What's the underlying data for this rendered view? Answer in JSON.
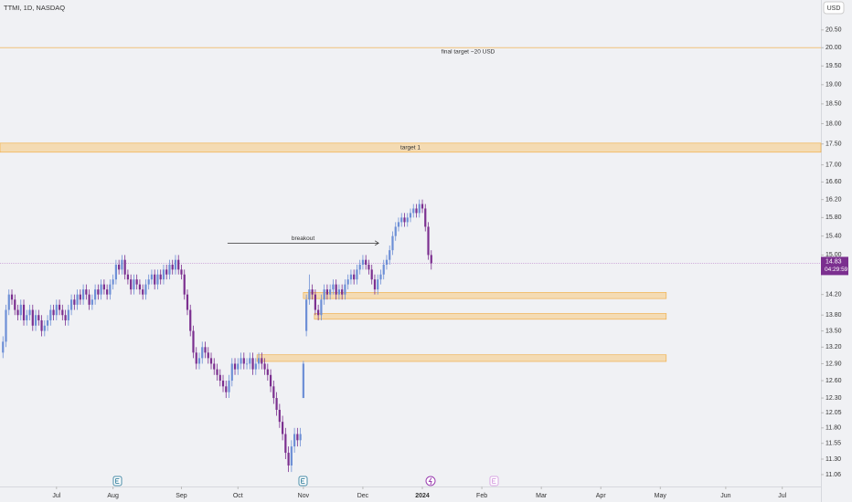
{
  "chart_data": {
    "type": "candlestick",
    "title": "TTMI, 1D, NASDAQ",
    "currency": "USD",
    "countdown": "04:29:59",
    "up_color": "#6d8fd6",
    "down_color": "#7b2f8f",
    "zone_color": "#f7c97e",
    "log_scale": true,
    "ylim": [
      10.92,
      21.37
    ],
    "yticks": [
      {
        "value": 20.5,
        "label": "20.50"
      },
      {
        "value": 20,
        "label": "20.00"
      },
      {
        "value": 19.5,
        "label": "19.50"
      },
      {
        "value": 19,
        "label": "19.00"
      },
      {
        "value": 18.5,
        "label": "18.50"
      },
      {
        "value": 18,
        "label": "18.00"
      },
      {
        "value": 17.5,
        "label": "17.50"
      },
      {
        "value": 17,
        "label": "17.00"
      },
      {
        "value": 16.6,
        "label": "16.60"
      },
      {
        "value": 16.2,
        "label": "16.20"
      },
      {
        "value": 15.8,
        "label": "15.80"
      },
      {
        "value": 15.4,
        "label": "15.40"
      },
      {
        "value": 15,
        "label": "15.00"
      },
      {
        "value": 14.2,
        "label": "14.20"
      },
      {
        "value": 13.8,
        "label": "13.80"
      },
      {
        "value": 13.5,
        "label": "13.50"
      },
      {
        "value": 13.2,
        "label": "13.20"
      },
      {
        "value": 12.9,
        "label": "12.90"
      },
      {
        "value": 12.6,
        "label": "12.60"
      },
      {
        "value": 12.3,
        "label": "12.30"
      },
      12.05,
      {
        "value": 11.8,
        "label": "11.80"
      },
      11.55,
      {
        "value": 11.3,
        "label": "11.30"
      },
      11.06
    ],
    "xlim": [
      -1,
      275
    ],
    "xticks": [
      {
        "value": 18,
        "label": "Jul"
      },
      {
        "value": 37,
        "label": "Aug"
      },
      {
        "value": 60,
        "label": "Sep"
      },
      {
        "value": 79,
        "label": "Oct"
      },
      {
        "value": 101,
        "label": "Nov"
      },
      {
        "value": 121,
        "label": "Dec"
      },
      {
        "value": 141,
        "label": "2024"
      },
      {
        "value": 161,
        "label": "Feb"
      },
      {
        "value": 181,
        "label": "Mar"
      },
      {
        "value": 201,
        "label": "Apr"
      },
      {
        "value": 221,
        "label": "May"
      },
      {
        "value": 243,
        "label": "Jun"
      },
      {
        "value": 262,
        "label": "Jul"
      }
    ],
    "candles": [
      [
        13.1,
        13.4,
        13.0,
        13.3
      ],
      [
        13.3,
        14.0,
        13.2,
        13.9
      ],
      [
        13.9,
        14.3,
        13.8,
        14.2
      ],
      [
        14.2,
        14.3,
        14.0,
        14.1
      ],
      [
        14.1,
        14.2,
        13.8,
        13.9
      ],
      [
        13.9,
        14.0,
        13.7,
        13.8
      ],
      [
        13.8,
        14.1,
        13.7,
        14.0
      ],
      [
        14.0,
        14.1,
        13.6,
        13.7
      ],
      [
        13.7,
        13.9,
        13.6,
        13.8
      ],
      [
        13.8,
        14.0,
        13.7,
        13.9
      ],
      [
        13.9,
        14.0,
        13.5,
        13.6
      ],
      [
        13.6,
        13.9,
        13.5,
        13.8
      ],
      [
        13.8,
        13.9,
        13.6,
        13.7
      ],
      [
        13.7,
        13.8,
        13.4,
        13.5
      ],
      [
        13.5,
        13.7,
        13.4,
        13.6
      ],
      [
        13.6,
        13.8,
        13.5,
        13.7
      ],
      [
        13.7,
        14.0,
        13.6,
        13.9
      ],
      [
        13.9,
        14.0,
        13.7,
        13.8
      ],
      [
        13.8,
        14.1,
        13.7,
        14.0
      ],
      [
        14.0,
        14.1,
        13.8,
        13.9
      ],
      [
        13.9,
        14.0,
        13.7,
        13.8
      ],
      [
        13.8,
        13.9,
        13.6,
        13.7
      ],
      [
        13.7,
        14.0,
        13.6,
        13.9
      ],
      [
        13.9,
        14.2,
        13.8,
        14.1
      ],
      [
        14.1,
        14.2,
        13.9,
        14.0
      ],
      [
        14.0,
        14.3,
        13.9,
        14.2
      ],
      [
        14.2,
        14.3,
        14.0,
        14.1
      ],
      [
        14.1,
        14.4,
        14.0,
        14.3
      ],
      [
        14.3,
        14.4,
        14.1,
        14.2
      ],
      [
        14.2,
        14.3,
        13.9,
        14.0
      ],
      [
        14.0,
        14.2,
        13.9,
        14.1
      ],
      [
        14.1,
        14.4,
        14.0,
        14.3
      ],
      [
        14.3,
        14.4,
        14.1,
        14.2
      ],
      [
        14.2,
        14.5,
        14.1,
        14.4
      ],
      [
        14.4,
        14.5,
        14.2,
        14.3
      ],
      [
        14.3,
        14.4,
        14.1,
        14.2
      ],
      [
        14.2,
        14.5,
        14.1,
        14.4
      ],
      [
        14.4,
        14.6,
        14.3,
        14.5
      ],
      [
        14.5,
        14.9,
        14.4,
        14.8
      ],
      [
        14.8,
        14.9,
        14.6,
        14.7
      ],
      [
        14.7,
        15.0,
        14.6,
        14.9
      ],
      [
        14.9,
        15.0,
        14.5,
        14.6
      ],
      [
        14.6,
        14.7,
        14.4,
        14.5
      ],
      [
        14.5,
        14.6,
        14.2,
        14.3
      ],
      [
        14.3,
        14.6,
        14.2,
        14.5
      ],
      [
        14.5,
        14.6,
        14.3,
        14.4
      ],
      [
        14.4,
        14.5,
        14.2,
        14.3
      ],
      [
        14.3,
        14.4,
        14.1,
        14.2
      ],
      [
        14.2,
        14.5,
        14.1,
        14.4
      ],
      [
        14.4,
        14.6,
        14.3,
        14.5
      ],
      [
        14.5,
        14.7,
        14.4,
        14.6
      ],
      [
        14.6,
        14.7,
        14.3,
        14.4
      ],
      [
        14.4,
        14.7,
        14.3,
        14.6
      ],
      [
        14.6,
        14.7,
        14.4,
        14.5
      ],
      [
        14.5,
        14.8,
        14.4,
        14.7
      ],
      [
        14.7,
        14.8,
        14.5,
        14.6
      ],
      [
        14.6,
        14.9,
        14.5,
        14.8
      ],
      [
        14.8,
        14.9,
        14.6,
        14.7
      ],
      [
        14.7,
        15.0,
        14.6,
        14.9
      ],
      [
        14.9,
        15.0,
        14.6,
        14.7
      ],
      [
        14.7,
        14.8,
        14.5,
        14.6
      ],
      [
        14.6,
        14.7,
        14.1,
        14.2
      ],
      [
        14.2,
        14.3,
        13.8,
        13.9
      ],
      [
        13.9,
        14.0,
        13.4,
        13.5
      ],
      [
        13.5,
        13.6,
        13.0,
        13.1
      ],
      [
        13.1,
        13.2,
        12.8,
        12.9
      ],
      [
        12.9,
        13.1,
        12.8,
        13.0
      ],
      [
        13.0,
        13.3,
        12.9,
        13.2
      ],
      [
        13.2,
        13.3,
        13.0,
        13.1
      ],
      [
        13.1,
        13.2,
        12.9,
        13.0
      ],
      [
        13.0,
        13.1,
        12.8,
        12.9
      ],
      [
        12.9,
        13.0,
        12.7,
        12.8
      ],
      [
        12.8,
        12.9,
        12.6,
        12.7
      ],
      [
        12.7,
        12.8,
        12.5,
        12.6
      ],
      [
        12.6,
        12.7,
        12.4,
        12.5
      ],
      [
        12.5,
        12.6,
        12.3,
        12.4
      ],
      [
        12.4,
        12.7,
        12.3,
        12.6
      ],
      [
        12.6,
        13.0,
        12.5,
        12.9
      ],
      [
        12.9,
        13.0,
        12.7,
        12.8
      ],
      [
        12.8,
        13.0,
        12.7,
        12.9
      ],
      [
        12.9,
        13.1,
        12.8,
        13.0
      ],
      [
        13.0,
        13.1,
        12.8,
        12.9
      ],
      [
        12.9,
        13.0,
        12.8,
        12.9
      ],
      [
        12.9,
        13.1,
        12.8,
        13.0
      ],
      [
        13.0,
        13.1,
        12.7,
        12.8
      ],
      [
        12.8,
        13.0,
        12.7,
        12.9
      ],
      [
        12.9,
        13.1,
        12.8,
        13.0
      ],
      [
        13.0,
        13.1,
        12.8,
        12.9
      ],
      [
        12.9,
        13.0,
        12.7,
        12.8
      ],
      [
        12.8,
        12.9,
        12.6,
        12.7
      ],
      [
        12.7,
        12.8,
        12.4,
        12.5
      ],
      [
        12.5,
        12.6,
        12.2,
        12.3
      ],
      [
        12.3,
        12.4,
        12.0,
        12.1
      ],
      [
        12.1,
        12.2,
        11.8,
        11.9
      ],
      [
        11.9,
        12.0,
        11.6,
        11.7
      ],
      [
        11.7,
        11.8,
        11.3,
        11.4
      ],
      [
        11.4,
        11.5,
        11.1,
        11.2
      ],
      [
        11.2,
        11.6,
        11.1,
        11.5
      ],
      [
        11.5,
        11.8,
        11.4,
        11.7
      ],
      [
        11.7,
        11.8,
        11.5,
        11.6
      ],
      [
        11.6,
        11.8,
        11.5,
        11.7
      ],
      [
        12.3,
        12.95,
        12.3,
        12.9
      ],
      [
        13.5,
        14.2,
        13.4,
        14.1
      ],
      [
        14.1,
        14.6,
        14.0,
        14.3
      ],
      [
        14.3,
        14.4,
        14.1,
        14.2
      ],
      [
        14.2,
        14.3,
        13.8,
        13.9
      ],
      [
        13.9,
        14.0,
        13.7,
        13.8
      ],
      [
        13.8,
        14.2,
        13.7,
        14.1
      ],
      [
        14.1,
        14.4,
        14.0,
        14.3
      ],
      [
        14.3,
        14.4,
        14.1,
        14.2
      ],
      [
        14.2,
        14.4,
        14.1,
        14.3
      ],
      [
        14.3,
        14.5,
        14.2,
        14.4
      ],
      [
        14.4,
        14.5,
        14.1,
        14.2
      ],
      [
        14.2,
        14.4,
        14.1,
        14.3
      ],
      [
        14.3,
        14.4,
        14.1,
        14.2
      ],
      [
        14.2,
        14.5,
        14.1,
        14.4
      ],
      [
        14.4,
        14.6,
        14.3,
        14.5
      ],
      [
        14.5,
        14.7,
        14.4,
        14.6
      ],
      [
        14.6,
        14.7,
        14.4,
        14.5
      ],
      [
        14.5,
        14.8,
        14.4,
        14.7
      ],
      [
        14.7,
        14.9,
        14.6,
        14.8
      ],
      [
        14.8,
        15.0,
        14.7,
        14.9
      ],
      [
        14.9,
        15.0,
        14.7,
        14.8
      ],
      [
        14.8,
        14.9,
        14.6,
        14.7
      ],
      [
        14.7,
        14.8,
        14.4,
        14.5
      ],
      [
        14.5,
        14.6,
        14.2,
        14.3
      ],
      [
        14.3,
        14.6,
        14.2,
        14.5
      ],
      [
        14.5,
        14.7,
        14.4,
        14.6
      ],
      [
        14.6,
        14.9,
        14.5,
        14.8
      ],
      [
        14.8,
        15.0,
        14.7,
        14.9
      ],
      [
        14.9,
        15.2,
        14.8,
        15.1
      ],
      [
        15.1,
        15.5,
        15.0,
        15.4
      ],
      [
        15.4,
        15.7,
        15.3,
        15.6
      ],
      [
        15.6,
        15.8,
        15.5,
        15.7
      ],
      [
        15.7,
        15.9,
        15.6,
        15.8
      ],
      [
        15.8,
        15.9,
        15.6,
        15.7
      ],
      [
        15.7,
        15.9,
        15.6,
        15.8
      ],
      [
        15.8,
        16.0,
        15.7,
        15.9
      ],
      [
        15.9,
        16.1,
        15.8,
        16.0
      ],
      [
        16.0,
        16.1,
        15.8,
        15.9
      ],
      [
        15.9,
        16.2,
        15.8,
        16.1
      ],
      [
        16.1,
        16.2,
        15.9,
        16.0
      ],
      [
        16.0,
        16.1,
        15.5,
        15.6
      ],
      [
        15.6,
        15.7,
        14.9,
        15.0
      ],
      [
        15.0,
        15.1,
        14.7,
        14.83
      ]
    ],
    "zones": [
      {
        "label": "target 1",
        "low": 17.3,
        "high": 17.52,
        "start": -1,
        "end": 275
      },
      {
        "low": 14.12,
        "high": 14.24,
        "start": 101,
        "end": 223
      },
      {
        "low": 13.72,
        "high": 13.83,
        "start": 104.7,
        "end": 223
      },
      {
        "low": 12.94,
        "high": 13.06,
        "start": 85.4,
        "end": 223
      }
    ],
    "target_line": {
      "label": "final target ~20 USD",
      "price": 20
    },
    "arrow": {
      "label": "breakout",
      "price": 15.25,
      "start": 75.5,
      "end": 126.3
    }
  }
}
